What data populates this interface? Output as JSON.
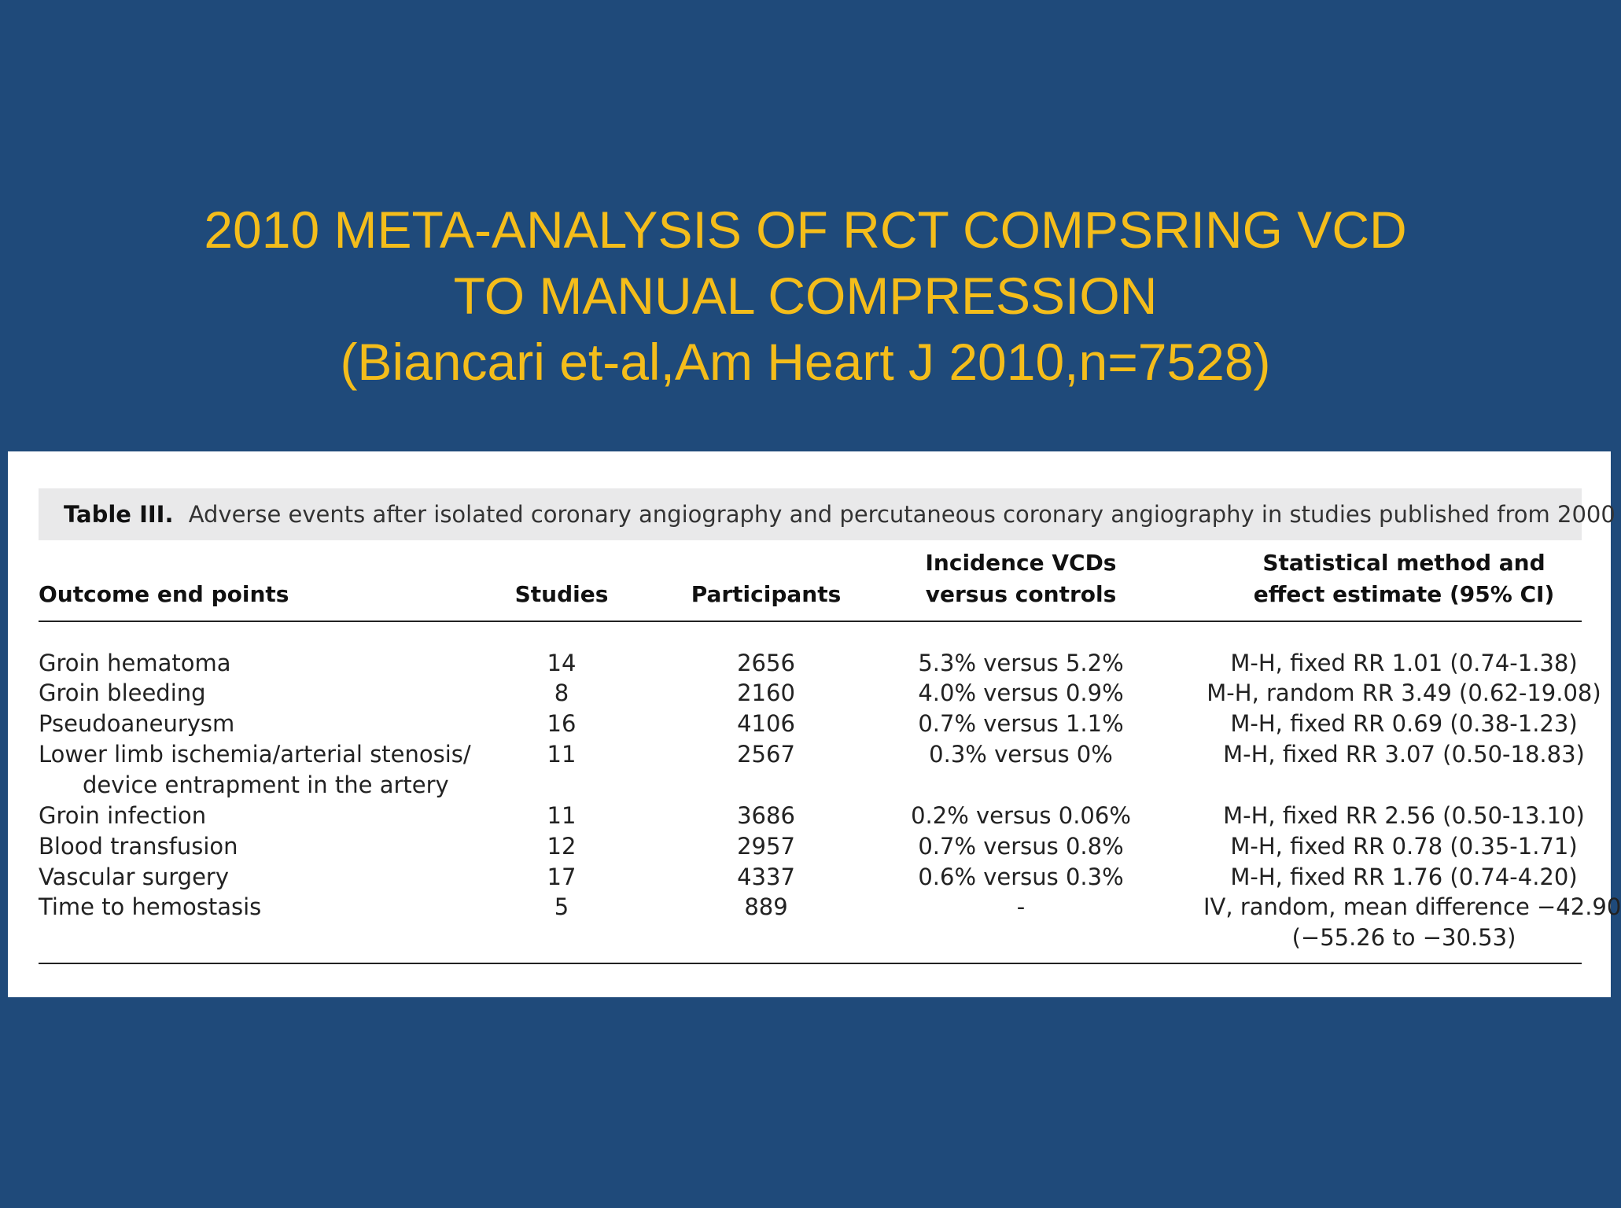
{
  "slide": {
    "title_lines": [
      "2010 META-ANALYSIS OF RCT COMPSRING VCD",
      "TO MANUAL COMPRESSION",
      "(Biancari et-al,Am Heart J 2010,n=7528)"
    ],
    "colors": {
      "background": "#1f4a7a",
      "title": "#f4bd1b",
      "table_background": "#ffffff",
      "caption_background": "#e9e9ea"
    }
  },
  "table": {
    "caption_label": "Table III.",
    "caption_text": "Adverse events after isolated coronary angiography and percutaneous coronary angiography in studies published from 2000",
    "headers": {
      "outcome": "Outcome end points",
      "studies": "Studies",
      "participants": "Participants",
      "incidence_line1": "Incidence VCDs",
      "incidence_line2": "versus controls",
      "method_line1": "Statistical method and",
      "method_line2": "effect estimate (95% CI)"
    },
    "rows": [
      {
        "outcome": "Groin hematoma",
        "outcome_cont": "",
        "studies": "14",
        "participants": "2656",
        "incidence": "5.3% versus 5.2%",
        "method": "M-H, fixed RR 1.01 (0.74-1.38)",
        "method_cont": ""
      },
      {
        "outcome": "Groin bleeding",
        "outcome_cont": "",
        "studies": "8",
        "participants": "2160",
        "incidence": "4.0% versus 0.9%",
        "method": "M-H, random RR 3.49 (0.62-19.08)",
        "method_cont": ""
      },
      {
        "outcome": "Pseudoaneurysm",
        "outcome_cont": "",
        "studies": "16",
        "participants": "4106",
        "incidence": "0.7% versus 1.1%",
        "method": "M-H, fixed RR 0.69 (0.38-1.23)",
        "method_cont": ""
      },
      {
        "outcome": "Lower limb ischemia/arterial stenosis/",
        "outcome_cont": "device entrapment in the artery",
        "studies": "11",
        "participants": "2567",
        "incidence": "0.3% versus 0%",
        "method": "M-H, fixed RR 3.07 (0.50-18.83)",
        "method_cont": ""
      },
      {
        "outcome": "Groin infection",
        "outcome_cont": "",
        "studies": "11",
        "participants": "3686",
        "incidence": "0.2% versus 0.06%",
        "method": "M-H, fixed RR 2.56 (0.50-13.10)",
        "method_cont": ""
      },
      {
        "outcome": "Blood transfusion",
        "outcome_cont": "",
        "studies": "12",
        "participants": "2957",
        "incidence": "0.7% versus 0.8%",
        "method": "M-H, fixed RR 0.78 (0.35-1.71)",
        "method_cont": ""
      },
      {
        "outcome": "Vascular surgery",
        "outcome_cont": "",
        "studies": "17",
        "participants": "4337",
        "incidence": "0.6% versus 0.3%",
        "method": "M-H, fixed RR 1.76 (0.74-4.20)",
        "method_cont": ""
      },
      {
        "outcome": "Time to hemostasis",
        "outcome_cont": "",
        "studies": "5",
        "participants": "889",
        "incidence": "-",
        "method": "IV, random, mean difference −42.90",
        "method_cont": "(−55.26 to −30.53)"
      }
    ]
  }
}
